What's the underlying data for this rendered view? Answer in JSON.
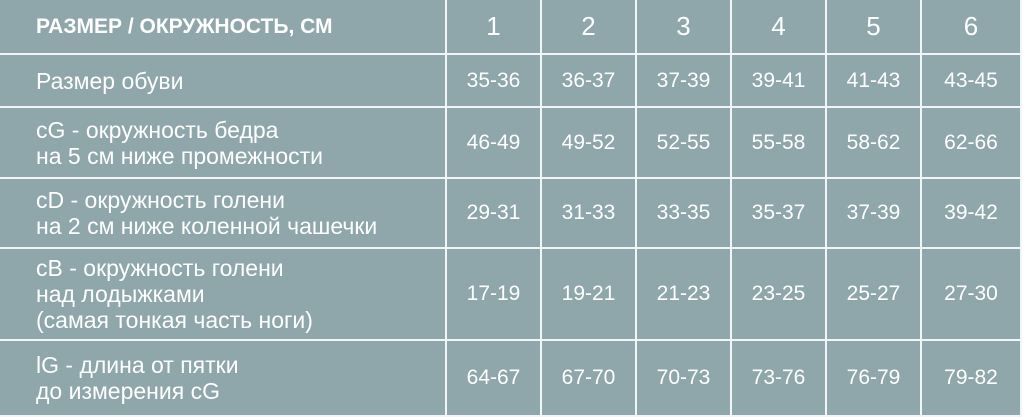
{
  "header": {
    "label": "РАЗМЕР / ОКРУЖНОСТЬ, СМ",
    "sizes": [
      "1",
      "2",
      "3",
      "4",
      "5",
      "6"
    ]
  },
  "rows": [
    {
      "label_lines": [
        "Размер обуви"
      ],
      "values": [
        "35-36",
        "36-37",
        "37-39",
        "39-41",
        "41-43",
        "43-45"
      ]
    },
    {
      "label_lines": [
        "cG - окружность бедра",
        "на 5 см ниже промежности"
      ],
      "values": [
        "46-49",
        "49-52",
        "52-55",
        "55-58",
        "58-62",
        "62-66"
      ]
    },
    {
      "label_lines": [
        "cD - окружность  голени",
        "на 2 см ниже коленной чашечки"
      ],
      "values": [
        "29-31",
        "31-33",
        "33-35",
        "35-37",
        "37-39",
        "39-42"
      ]
    },
    {
      "label_lines": [
        "cB - окружность  голени",
        "над лодыжками",
        "(самая тонкая часть ноги)"
      ],
      "values": [
        "17-19",
        "19-21",
        "21-23",
        "23-25",
        "25-27",
        "27-30"
      ]
    },
    {
      "label_lines": [
        "lG - длина от пятки",
        "до измерения cG"
      ],
      "values": [
        "64-67",
        "67-70",
        "70-73",
        "73-76",
        "76-79",
        "79-82"
      ]
    }
  ],
  "colors": {
    "background": "#8fa6aa",
    "grid": "#f2f5f5",
    "text": "#ffffff"
  }
}
